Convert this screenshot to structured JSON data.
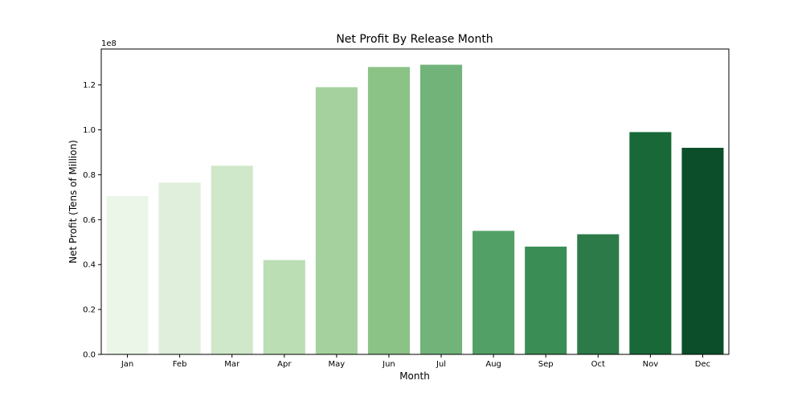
{
  "chart_data": {
    "type": "bar",
    "title": "Net Profit By Release Month",
    "xlabel": "Month",
    "ylabel": "Net Profit (Tens of Million)",
    "offset_label": "1e8",
    "categories": [
      "Jan",
      "Feb",
      "Mar",
      "Apr",
      "May",
      "Jun",
      "Jul",
      "Aug",
      "Sep",
      "Oct",
      "Nov",
      "Dec"
    ],
    "values": [
      70500000,
      76500000,
      84000000,
      42000000,
      119000000,
      128000000,
      129000000,
      55000000,
      48000000,
      53500000,
      99000000,
      92000000
    ],
    "ylim": [
      0,
      136000000
    ],
    "yticks": [
      0,
      20000000,
      40000000,
      60000000,
      80000000,
      100000000,
      120000000
    ],
    "ytick_labels": [
      "0.0",
      "0.2",
      "0.4",
      "0.6",
      "0.8",
      "1.0",
      "1.2"
    ],
    "colors": [
      "#ebf6e9",
      "#dfefdb",
      "#cfe8c9",
      "#bbdeb5",
      "#a4d19d",
      "#8bc286",
      "#72b37a",
      "#52a065",
      "#3a8d55",
      "#2b7a47",
      "#186838",
      "#0c4e29"
    ],
    "grid": false,
    "legend": "none"
  }
}
